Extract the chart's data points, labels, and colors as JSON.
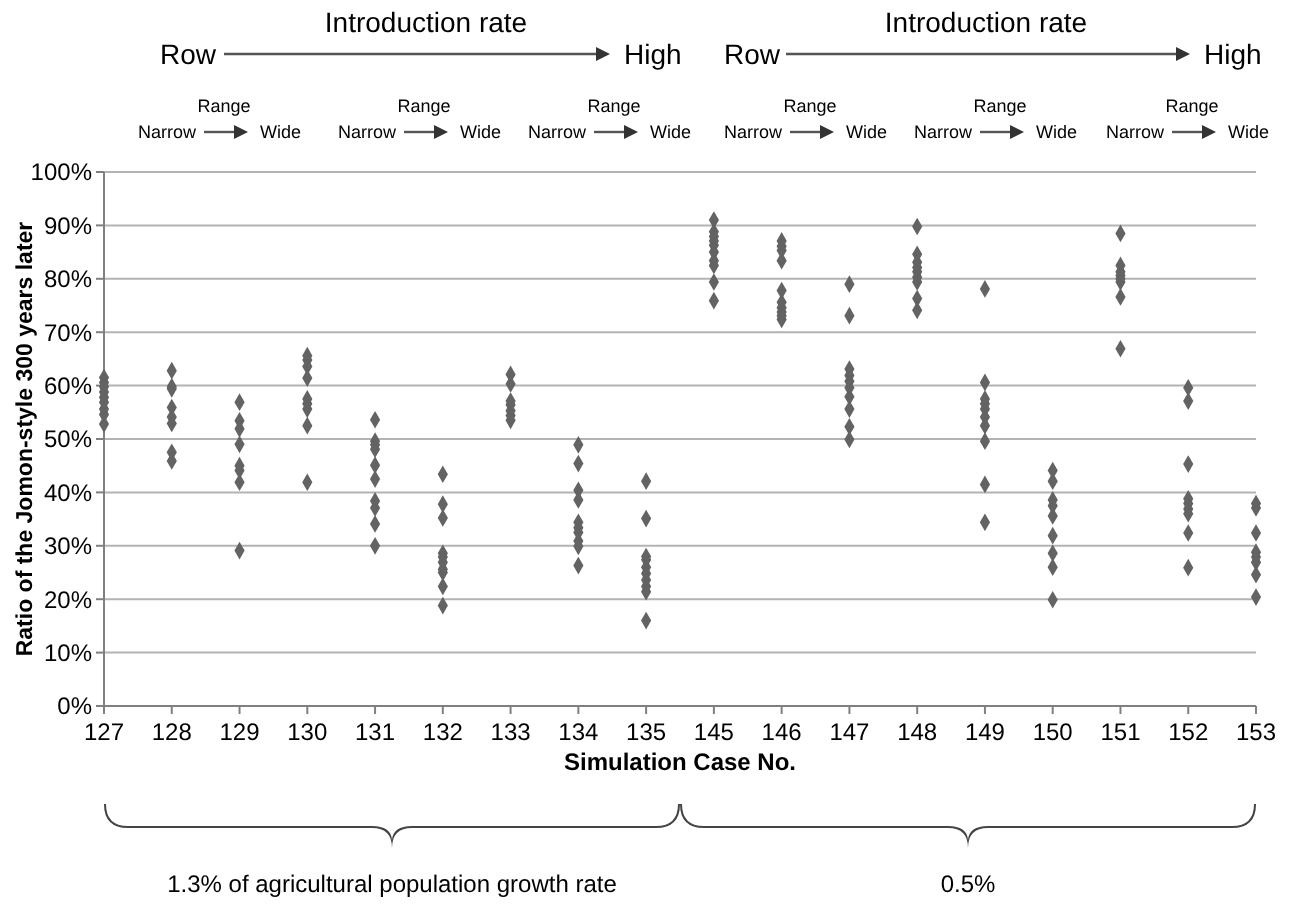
{
  "chart_data": {
    "type": "scatter",
    "xlabel": "Simulation Case No.",
    "ylabel": "Ratio of the Jomon-style 300 years later",
    "categories": [
      "127",
      "128",
      "129",
      "130",
      "131",
      "132",
      "133",
      "134",
      "135",
      "145",
      "146",
      "147",
      "148",
      "149",
      "150",
      "151",
      "152",
      "153"
    ],
    "ylim": [
      0,
      100
    ],
    "yticks": [
      {
        "value": 0,
        "label": "0%"
      },
      {
        "value": 10,
        "label": "10%"
      },
      {
        "value": 20,
        "label": "20%"
      },
      {
        "value": 30,
        "label": "30%"
      },
      {
        "value": 40,
        "label": "40%"
      },
      {
        "value": 50,
        "label": "50%"
      },
      {
        "value": 60,
        "label": "60%"
      },
      {
        "value": 70,
        "label": "70%"
      },
      {
        "value": 80,
        "label": "80%"
      },
      {
        "value": 90,
        "label": "90%"
      },
      {
        "value": 100,
        "label": "100%"
      }
    ],
    "grid": "y",
    "marker": "diamond",
    "series": [
      {
        "color": "#636363",
        "x": [
          "127",
          "127",
          "127",
          "127",
          "127",
          "127",
          "127",
          "127",
          "127",
          "128",
          "128",
          "128",
          "128",
          "128",
          "128",
          "128",
          "128",
          "129",
          "129",
          "129",
          "129",
          "129",
          "129",
          "129",
          "129",
          "130",
          "130",
          "130",
          "130",
          "130",
          "130",
          "130",
          "130",
          "130",
          "131",
          "131",
          "131",
          "131",
          "131",
          "131",
          "131",
          "131",
          "131",
          "131",
          "132",
          "132",
          "132",
          "132",
          "132",
          "132",
          "132",
          "132",
          "132",
          "132",
          "133",
          "133",
          "133",
          "133",
          "133",
          "133",
          "133",
          "134",
          "134",
          "134",
          "134",
          "134",
          "134",
          "134",
          "134",
          "134",
          "134",
          "135",
          "135",
          "135",
          "135",
          "135",
          "135",
          "135",
          "135",
          "135",
          "135",
          "145",
          "145",
          "145",
          "145",
          "145",
          "145",
          "145",
          "145",
          "145",
          "145",
          "146",
          "146",
          "146",
          "146",
          "146",
          "146",
          "146",
          "146",
          "146",
          "146",
          "147",
          "147",
          "147",
          "147",
          "147",
          "147",
          "147",
          "147",
          "147",
          "147",
          "148",
          "148",
          "148",
          "148",
          "148",
          "148",
          "148",
          "148",
          "148",
          "149",
          "149",
          "149",
          "149",
          "149",
          "149",
          "149",
          "149",
          "149",
          "149",
          "150",
          "150",
          "150",
          "150",
          "150",
          "150",
          "150",
          "150",
          "150",
          "151",
          "151",
          "151",
          "151",
          "151",
          "151",
          "151",
          "151",
          "152",
          "152",
          "152",
          "152",
          "152",
          "152",
          "152",
          "152",
          "152",
          "153",
          "153",
          "153",
          "153",
          "153",
          "153",
          "153",
          "153"
        ],
        "values": [
          61.5,
          60.6,
          59.8,
          58.8,
          57.8,
          56.9,
          55.6,
          54.6,
          52.8,
          62.8,
          59.8,
          59.4,
          55.9,
          54.1,
          52.9,
          47.5,
          45.9,
          56.9,
          53.4,
          51.9,
          49,
          45,
          44.1,
          41.9,
          29.1,
          65.6,
          64.8,
          63.6,
          61.4,
          57.5,
          56.6,
          55.6,
          52.5,
          41.9,
          53.6,
          49.6,
          48.9,
          48.1,
          45.1,
          42.5,
          38.4,
          37.1,
          34.1,
          30,
          43.4,
          37.8,
          35.2,
          28.6,
          27.9,
          26.9,
          25.6,
          25,
          22.4,
          18.8,
          62.1,
          60.3,
          57.1,
          56.4,
          55.3,
          54.4,
          53.5,
          48.9,
          45.4,
          40.4,
          38.6,
          34.4,
          33.4,
          32.5,
          30.9,
          29.9,
          26.3,
          42.1,
          35.1,
          28,
          27.4,
          26,
          24.8,
          23.6,
          22.4,
          21.4,
          16,
          91,
          88.8,
          87.9,
          87.1,
          86.3,
          85,
          83.4,
          82.5,
          79.4,
          75.9,
          87.1,
          86.1,
          85.3,
          83.4,
          77.8,
          75.6,
          74.6,
          73.8,
          73.1,
          72.4,
          79,
          73.1,
          63.1,
          61.9,
          60.8,
          59.6,
          57.9,
          55.6,
          52.3,
          49.9,
          89.8,
          84.6,
          83.1,
          82.1,
          81.3,
          80.3,
          79.4,
          76.3,
          74.1,
          78.1,
          60.6,
          57.5,
          56.6,
          55.6,
          54.1,
          52.5,
          49.6,
          41.5,
          34.4,
          44.1,
          42.1,
          38.6,
          37.5,
          35.6,
          31.9,
          28.6,
          26,
          19.9,
          88.5,
          82.5,
          81.3,
          80.6,
          80,
          79.4,
          76.6,
          66.9,
          59.6,
          57.1,
          45.3,
          38.8,
          37.9,
          36.9,
          36,
          32.4,
          25.9,
          37.9,
          37.1,
          32.4,
          28.8,
          27.9,
          26.9,
          24.6,
          20.4
        ]
      }
    ],
    "annotations": [
      "Row",
      "Introduction rate",
      "High",
      "Row",
      "Introduction rate",
      "High",
      "Range",
      "Narrow",
      "Wide",
      "Range",
      "Narrow",
      "Wide",
      "Range",
      "Narrow",
      "Wide",
      "Range",
      "Narrow",
      "Wide",
      "Range",
      "Narrow",
      "Wide",
      "Range",
      "Narrow",
      "Wide",
      "1.3% of agricultural population growth rate",
      "0.5%"
    ]
  }
}
